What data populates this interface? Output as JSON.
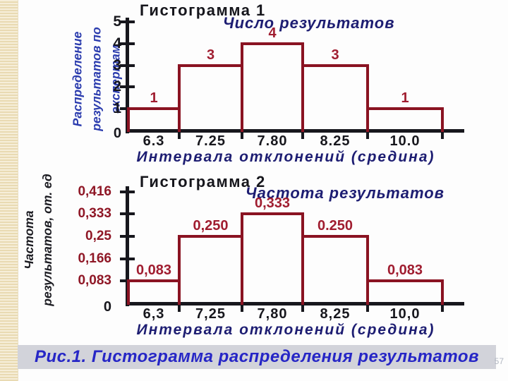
{
  "slide": {
    "caption": "Рис.1. Гистограмма распределения результатов",
    "page_number": "57"
  },
  "colors": {
    "bar_outline": "#8a1322",
    "bar_label": "#a01d30",
    "axis": "#17171d",
    "legend_navy": "#1d1d72",
    "ylabel_blue": "#2b3cae",
    "caption_blue": "#2626c6",
    "ytick_red": "#8f1726"
  },
  "chart_data": [
    {
      "type": "bar",
      "title": "Гистограмма 1",
      "legend": "Число результатов",
      "legend_position": "top-right",
      "ylabel": "Распределение\nрезультатов по экспертам",
      "xlabel": "Интервала отклонений (средина)",
      "categories": [
        "6.3",
        "7.25",
        "7.80",
        "8.25",
        "10.0"
      ],
      "values": [
        1,
        3,
        4,
        3,
        1
      ],
      "bar_labels": [
        "1",
        "3",
        "4",
        "3",
        "1"
      ],
      "yticks": [
        1,
        2,
        3,
        4,
        5
      ],
      "ytick_labels": [
        "1",
        "2",
        "3",
        "4",
        "5"
      ],
      "origin_label": "0",
      "ylim": [
        0,
        5
      ],
      "grid": false
    },
    {
      "type": "bar",
      "title": "Гистограмма 2",
      "legend": "Частота результатов",
      "legend_position": "top-right",
      "ylabel": "Частота\nрезультатов, от. ед",
      "xlabel": "Интервала отклонений (средина)",
      "categories": [
        "6,3",
        "7,25",
        "7,80",
        "8,25",
        "10,0"
      ],
      "values": [
        0.083,
        0.25,
        0.333,
        0.25,
        0.083
      ],
      "bar_labels": [
        "0,083",
        "0,250",
        "0,333",
        "0.250",
        "0,083"
      ],
      "yticks": [
        0.083,
        0.166,
        0.25,
        0.333,
        0.416
      ],
      "ytick_labels": [
        "0,083",
        "0,166",
        "0,25",
        "0,333",
        "0,416"
      ],
      "origin_label": "0",
      "ylim": [
        0,
        0.416
      ],
      "grid": false
    }
  ]
}
